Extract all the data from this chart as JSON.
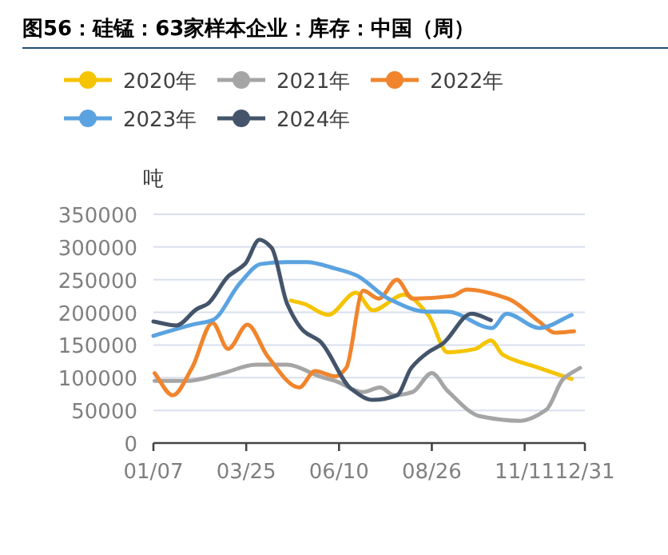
{
  "chart_data": {
    "type": "line",
    "title": "图56：硅锰：63家样本企业：库存：中国（周）",
    "ylabel": "吨",
    "xlim": [
      "--01-07",
      "--12-31"
    ],
    "xticks": [
      {
        "value": "--01-07",
        "label": "01/07"
      },
      {
        "value": "--03-25",
        "label": "03/25"
      },
      {
        "value": "--06-10",
        "label": "06/10"
      },
      {
        "value": "--08-26",
        "label": "08/26"
      },
      {
        "value": "--11-11",
        "label": "11/11"
      },
      {
        "value": "--12-31",
        "label": "12/31"
      }
    ],
    "ylim": [
      0,
      350000
    ],
    "yticks": [
      0,
      50000,
      100000,
      150000,
      200000,
      250000,
      300000,
      350000
    ],
    "grid": "y",
    "legend": "top",
    "series": [
      {
        "name": "2020年",
        "color": "#f5c400",
        "x": [
          "--05-01",
          "--05-12",
          "--06-01",
          "--06-24",
          "--07-08",
          "--08-03",
          "--08-23",
          "--09-08",
          "--10-01",
          "--10-14",
          "--10-24",
          "--11-23",
          "--12-20"
        ],
        "values": [
          218000,
          213000,
          196000,
          230000,
          203000,
          227000,
          196000,
          139000,
          144000,
          157000,
          135000,
          115000,
          98000
        ]
      },
      {
        "name": "2021年",
        "color": "#a5a5a5",
        "x": [
          "--01-08",
          "--02-04",
          "--03-06",
          "--04-02",
          "--04-28",
          "--05-25",
          "--06-07",
          "--06-30",
          "--07-14",
          "--07-26",
          "--08-10",
          "--08-26",
          "--09-08",
          "--10-05",
          "--11-07",
          "--11-29",
          "--12-13",
          "--12-27"
        ],
        "values": [
          95000,
          95000,
          107000,
          120000,
          120000,
          102000,
          95000,
          78000,
          85000,
          73000,
          78000,
          107000,
          80000,
          41000,
          34000,
          51000,
          98000,
          115000
        ]
      },
      {
        "name": "2022年",
        "color": "#f0852d",
        "x": [
          "--01-08",
          "--01-23",
          "--02-08",
          "--02-25",
          "--03-10",
          "--03-26",
          "--04-12",
          "--05-08",
          "--05-21",
          "--06-07",
          "--06-16",
          "--06-30",
          "--07-13",
          "--07-28",
          "--08-10",
          "--09-12",
          "--09-24",
          "--10-28",
          "--11-23",
          "--12-06",
          "--12-22"
        ],
        "values": [
          107000,
          73000,
          115000,
          184000,
          144000,
          181000,
          132000,
          85000,
          110000,
          102000,
          115000,
          233000,
          221000,
          250000,
          221000,
          225000,
          235000,
          221000,
          186000,
          169000,
          171000
        ]
      },
      {
        "name": "2023年",
        "color": "#5ba3e0",
        "x": [
          "--01-07",
          "--02-08",
          "--02-25",
          "--03-20",
          "--04-06",
          "--04-28",
          "--05-14",
          "--06-07",
          "--06-24",
          "--07-21",
          "--08-22",
          "--09-08",
          "--10-15",
          "--10-27",
          "--11-23",
          "--12-20"
        ],
        "values": [
          164000,
          181000,
          188000,
          245000,
          274000,
          277000,
          277000,
          267000,
          257000,
          221000,
          201000,
          201000,
          176000,
          198000,
          176000,
          196000
        ]
      },
      {
        "name": "2024年",
        "color": "#44546a",
        "x": [
          "--01-07",
          "--01-26",
          "--02-12",
          "--02-21",
          "--03-10",
          "--03-24",
          "--04-05",
          "--04-15",
          "--04-28",
          "--05-12",
          "--05-25",
          "--06-20",
          "--07-08",
          "--07-28",
          "--08-09",
          "--08-23",
          "--09-04",
          "--09-28",
          "--10-14"
        ],
        "values": [
          186000,
          180000,
          205000,
          213000,
          255000,
          274000,
          311000,
          299000,
          213000,
          171000,
          156000,
          83000,
          66000,
          73000,
          115000,
          139000,
          152000,
          198000,
          188000
        ]
      }
    ]
  }
}
